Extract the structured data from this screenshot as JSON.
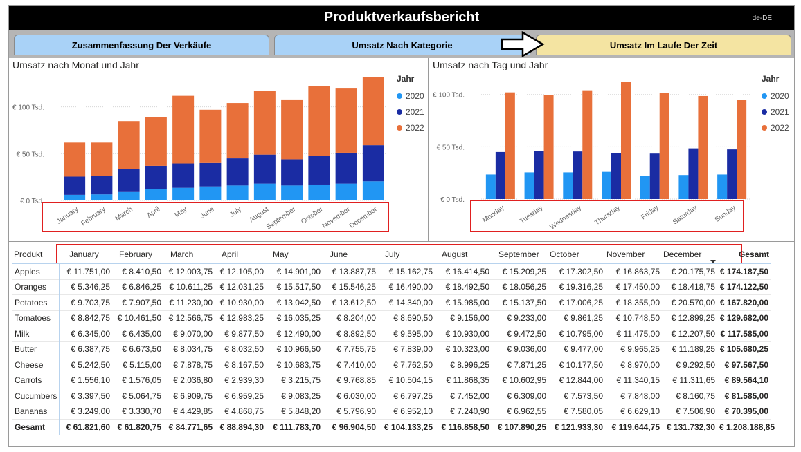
{
  "header": {
    "title": "Produktverkaufsbericht",
    "locale": "de-DE"
  },
  "tabs": [
    {
      "label": "Zusammenfassung Der Verkäufe"
    },
    {
      "label": "Umsatz Nach Kategorie"
    },
    {
      "label": "Umsatz Im Laufe Der Zeit",
      "active": true
    }
  ],
  "icons": {
    "tab_pointer": "right-arrow-icon"
  },
  "colors": {
    "y2020": "#2196f3",
    "y2021": "#1a2ca3",
    "y2022": "#e8703a",
    "annotation": "#e02020"
  },
  "legend": {
    "title": "Jahr",
    "items": [
      "2020",
      "2021",
      "2022"
    ]
  },
  "chart_data": [
    {
      "type": "bar",
      "stacked": true,
      "title": "Umsatz nach Monat und Jahr",
      "categories": [
        "January",
        "February",
        "March",
        "April",
        "May",
        "June",
        "July",
        "August",
        "September",
        "October",
        "November",
        "December"
      ],
      "series": [
        {
          "name": "2020",
          "values": [
            6000,
            6500,
            9000,
            12500,
            13500,
            15000,
            16000,
            18000,
            16000,
            17000,
            18000,
            20500
          ]
        },
        {
          "name": "2021",
          "values": [
            19500,
            20000,
            24500,
            24500,
            26000,
            25000,
            29000,
            31000,
            28000,
            31000,
            33000,
            38500
          ]
        },
        {
          "name": "2022",
          "values": [
            36300,
            35300,
            51300,
            51900,
            72300,
            56900,
            59100,
            67900,
            63900,
            73900,
            68600,
            72700
          ]
        }
      ],
      "yticks": [
        "€ 0 Tsd.",
        "€ 50 Tsd.",
        "€ 100 Tsd."
      ],
      "ylim": [
        0,
        130000
      ],
      "legend_position": "right",
      "grid": true
    },
    {
      "type": "bar",
      "stacked": false,
      "title": "Umsatz nach Tag und Jahr",
      "categories": [
        "Monday",
        "Tuesday",
        "Wednesday",
        "Thursday",
        "Friday",
        "Saturday",
        "Sunday"
      ],
      "series": [
        {
          "name": "2020",
          "values": [
            23500,
            25500,
            25500,
            26000,
            22000,
            23000,
            23500
          ]
        },
        {
          "name": "2021",
          "values": [
            45000,
            46000,
            45500,
            44000,
            43500,
            48500,
            47500
          ]
        },
        {
          "name": "2022",
          "values": [
            102000,
            99500,
            104000,
            112000,
            101500,
            98500,
            95000
          ]
        }
      ],
      "yticks": [
        "€ 0 Tsd.",
        "€ 50 Tsd.",
        "€ 100 Tsd."
      ],
      "ylim": [
        0,
        115000
      ],
      "legend_position": "right",
      "grid": true
    }
  ],
  "table": {
    "corner": "Produkt",
    "columns": [
      "January",
      "February",
      "March",
      "April",
      "May",
      "June",
      "July",
      "August",
      "September",
      "October",
      "November",
      "December"
    ],
    "total_label": "Gesamt",
    "rows": [
      {
        "name": "Apples",
        "values": [
          "€ 11.751,00",
          "€ 8.410,50",
          "€ 12.003,75",
          "€ 12.105,00",
          "€ 14.901,00",
          "€ 13.887,75",
          "€ 15.162,75",
          "€ 16.414,50",
          "€ 15.209,25",
          "€ 17.302,50",
          "€ 16.863,75",
          "€ 20.175,75"
        ],
        "total": "€ 174.187,50"
      },
      {
        "name": "Oranges",
        "values": [
          "€ 5.346,25",
          "€ 6.846,25",
          "€ 10.611,25",
          "€ 12.031,25",
          "€ 15.517,50",
          "€ 15.546,25",
          "€ 16.490,00",
          "€ 18.492,50",
          "€ 18.056,25",
          "€ 19.316,25",
          "€ 17.450,00",
          "€ 18.418,75"
        ],
        "total": "€ 174.122,50"
      },
      {
        "name": "Potatoes",
        "values": [
          "€ 9.703,75",
          "€ 7.907,50",
          "€ 11.230,00",
          "€ 10.930,00",
          "€ 13.042,50",
          "€ 13.612,50",
          "€ 14.340,00",
          "€ 15.985,00",
          "€ 15.137,50",
          "€ 17.006,25",
          "€ 18.355,00",
          "€ 20.570,00"
        ],
        "total": "€ 167.820,00"
      },
      {
        "name": "Tomatoes",
        "values": [
          "€ 8.842,75",
          "€ 10.461,50",
          "€ 12.566,75",
          "€ 12.983,25",
          "€ 16.035,25",
          "€ 8.204,00",
          "€ 8.690,50",
          "€ 9.156,00",
          "€ 9.233,00",
          "€ 9.861,25",
          "€ 10.748,50",
          "€ 12.899,25"
        ],
        "total": "€ 129.682,00"
      },
      {
        "name": "Milk",
        "values": [
          "€ 6.345,00",
          "€ 6.435,00",
          "€ 9.070,00",
          "€ 9.877,50",
          "€ 12.490,00",
          "€ 8.892,50",
          "€ 9.595,00",
          "€ 10.930,00",
          "€ 9.472,50",
          "€ 10.795,00",
          "€ 11.475,00",
          "€ 12.207,50"
        ],
        "total": "€ 117.585,00"
      },
      {
        "name": "Butter",
        "values": [
          "€ 6.387,75",
          "€ 6.673,50",
          "€ 8.034,75",
          "€ 8.032,50",
          "€ 10.966,50",
          "€ 7.755,75",
          "€ 7.839,00",
          "€ 10.323,00",
          "€ 9.036,00",
          "€ 9.477,00",
          "€ 9.965,25",
          "€ 11.189,25"
        ],
        "total": "€ 105.680,25"
      },
      {
        "name": "Cheese",
        "values": [
          "€ 5.242,50",
          "€ 5.115,00",
          "€ 7.878,75",
          "€ 8.167,50",
          "€ 10.683,75",
          "€ 7.410,00",
          "€ 7.762,50",
          "€ 8.996,25",
          "€ 7.871,25",
          "€ 10.177,50",
          "€ 8.970,00",
          "€ 9.292,50"
        ],
        "total": "€ 97.567,50"
      },
      {
        "name": "Carrots",
        "values": [
          "€ 1.556,10",
          "€ 1.576,05",
          "€ 2.036,80",
          "€ 2.939,30",
          "€ 3.215,75",
          "€ 9.768,85",
          "€ 10.504,15",
          "€ 11.868,35",
          "€ 10.602,95",
          "€ 12.844,00",
          "€ 11.340,15",
          "€ 11.311,65"
        ],
        "total": "€ 89.564,10"
      },
      {
        "name": "Cucumbers",
        "values": [
          "€ 3.397,50",
          "€ 5.064,75",
          "€ 6.909,75",
          "€ 6.959,25",
          "€ 9.083,25",
          "€ 6.030,00",
          "€ 6.797,25",
          "€ 7.452,00",
          "€ 6.309,00",
          "€ 7.573,50",
          "€ 7.848,00",
          "€ 8.160,75"
        ],
        "total": "€ 81.585,00"
      },
      {
        "name": "Bananas",
        "values": [
          "€ 3.249,00",
          "€ 3.330,70",
          "€ 4.429,85",
          "€ 4.868,75",
          "€ 5.848,20",
          "€ 5.796,90",
          "€ 6.952,10",
          "€ 7.240,90",
          "€ 6.962,55",
          "€ 7.580,05",
          "€ 6.629,10",
          "€ 7.506,90"
        ],
        "total": "€ 70.395,00"
      }
    ],
    "totals": {
      "name": "Gesamt",
      "values": [
        "€ 61.821,60",
        "€ 61.820,75",
        "€ 84.771,65",
        "€ 88.894,30",
        "€ 111.783,70",
        "€ 96.904,50",
        "€ 104.133,25",
        "€ 116.858,50",
        "€ 107.890,25",
        "€ 121.933,30",
        "€ 119.644,75",
        "€ 131.732,30"
      ],
      "total": "€ 1.208.188,85"
    }
  }
}
